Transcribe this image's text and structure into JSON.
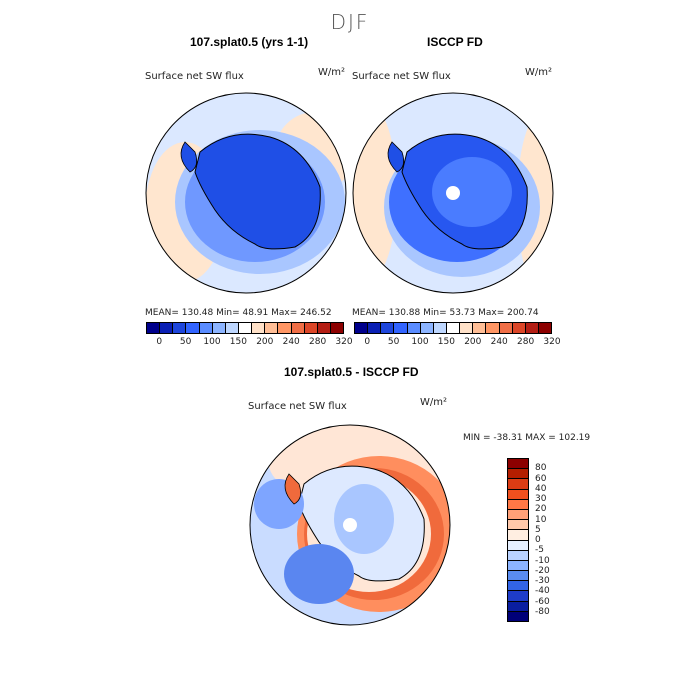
{
  "figure": {
    "season": "DJF"
  },
  "panels": {
    "model": {
      "title": "107.splat0.5 (yrs 1-1)",
      "variable": "Surface net SW flux",
      "units": "W/m²",
      "stats": "MEAN= 130.48   Min=   48.91   Max= 246.52"
    },
    "obs": {
      "title": "ISCCP FD",
      "variable": "Surface net SW flux",
      "units": "W/m²",
      "stats": "MEAN= 130.88   Min=   53.73   Max= 200.74"
    },
    "diff": {
      "title": "107.splat0.5 - ISCCP FD",
      "variable": "Surface net SW flux",
      "units": "W/m²",
      "stats": "MIN = -38.31  MAX = 102.19"
    }
  },
  "chart_data": [
    {
      "type": "heatmap",
      "title": "107.splat0.5 (yrs 1-1)",
      "projection": "south polar stereographic",
      "mean": 130.48,
      "min": 48.91,
      "max": 246.52,
      "colorbar_levels": [
        "0",
        "50",
        "100",
        "150",
        "200",
        "240",
        "280",
        "320"
      ],
      "colorbar_colors": [
        "#00008c",
        "#0a1fb4",
        "#1e46dc",
        "#3264ff",
        "#5a8cff",
        "#8cb4ff",
        "#bed7ff",
        "#ffffff",
        "#ffe1c8",
        "#ffbe96",
        "#ff9664",
        "#f06e46",
        "#dc4628",
        "#b41e14",
        "#8c0000"
      ]
    },
    {
      "type": "heatmap",
      "title": "ISCCP FD",
      "projection": "south polar stereographic",
      "mean": 130.88,
      "min": 53.73,
      "max": 200.74,
      "colorbar_levels": [
        "0",
        "50",
        "100",
        "150",
        "200",
        "240",
        "280",
        "320"
      ],
      "colorbar_colors": [
        "#00008c",
        "#0a1fb4",
        "#1e46dc",
        "#3264ff",
        "#5a8cff",
        "#8cb4ff",
        "#bed7ff",
        "#ffffff",
        "#ffe1c8",
        "#ffbe96",
        "#ff9664",
        "#f06e46",
        "#dc4628",
        "#b41e14",
        "#8c0000"
      ]
    },
    {
      "type": "heatmap",
      "title": "107.splat0.5 - ISCCP FD",
      "projection": "south polar stereographic",
      "min": -38.31,
      "max": 102.19,
      "colorbar_levels": [
        "80",
        "60",
        "40",
        "30",
        "20",
        "10",
        "5",
        "0",
        "-5",
        "-10",
        "-20",
        "-30",
        "-40",
        "-60",
        "-80"
      ],
      "colorbar_colors": [
        "#8c0000",
        "#b41e00",
        "#dc3c14",
        "#f0501e",
        "#ff7846",
        "#ffa078",
        "#ffc8aa",
        "#ffeee1",
        "#e6f0ff",
        "#b9d2ff",
        "#8cb4ff",
        "#5a8cf0",
        "#3264e6",
        "#1e3cc8",
        "#0a1ea0",
        "#000078"
      ]
    }
  ]
}
